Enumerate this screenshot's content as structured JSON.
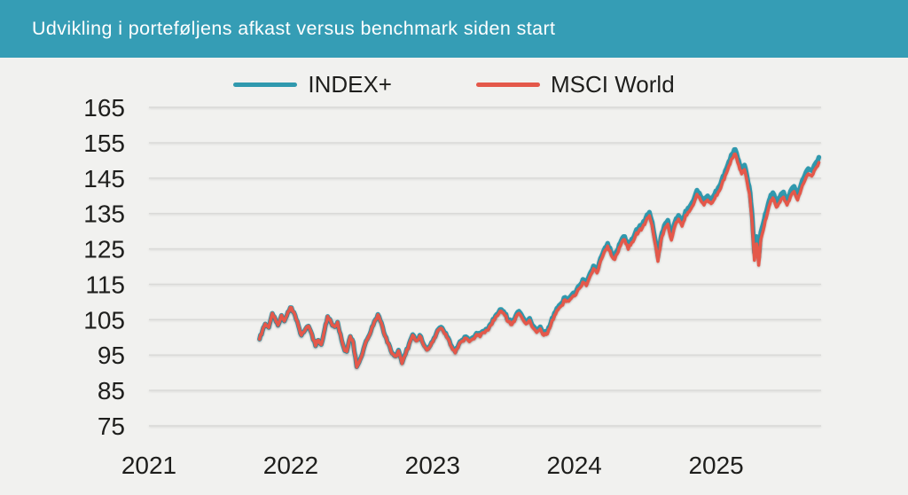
{
  "header": {
    "title": "Udvikling i porteføljens afkast versus benchmark siden start",
    "bg_color": "#359db5",
    "text_color": "#ffffff"
  },
  "chart_data": {
    "type": "line",
    "title": "Udvikling i porteføljens afkast versus benchmark siden start",
    "xlabel": "",
    "ylabel": "",
    "ylim": [
      75,
      165
    ],
    "yticks": [
      165,
      155,
      145,
      135,
      125,
      115,
      105,
      95,
      85,
      75
    ],
    "xticks": [
      2021,
      2022,
      2023,
      2024,
      2025
    ],
    "grid": "horizontal",
    "legend_position": "top",
    "background": "#f1f1ef",
    "grid_color": "#d9d9d7",
    "text_color": "#1e1e1c",
    "x": [
      2021.78,
      2021.8,
      2021.82,
      2021.845,
      2021.87,
      2021.89,
      2021.91,
      2021.935,
      2021.955,
      2021.98,
      2022.005,
      2022.03,
      2022.055,
      2022.075,
      2022.1,
      2022.125,
      2022.15,
      2022.175,
      2022.195,
      2022.215,
      2022.24,
      2022.26,
      2022.285,
      2022.31,
      2022.33,
      2022.35,
      2022.375,
      2022.395,
      2022.42,
      2022.44,
      2022.465,
      2022.49,
      2022.515,
      2022.54,
      2022.565,
      2022.59,
      2022.615,
      2022.64,
      2022.665,
      2022.69,
      2022.715,
      2022.74,
      2022.76,
      2022.785,
      2022.81,
      2022.835,
      2022.86,
      2022.885,
      2022.91,
      2022.935,
      2022.96,
      2022.985,
      2023.01,
      2023.035,
      2023.06,
      2023.085,
      2023.11,
      2023.135,
      2023.16,
      2023.185,
      2023.21,
      2023.235,
      2023.26,
      2023.285,
      2023.31,
      2023.335,
      2023.36,
      2023.385,
      2023.41,
      2023.435,
      2023.46,
      2023.485,
      2023.51,
      2023.535,
      2023.56,
      2023.585,
      2023.61,
      2023.635,
      2023.66,
      2023.685,
      2023.71,
      2023.735,
      2023.76,
      2023.785,
      2023.81,
      2023.835,
      2023.86,
      2023.885,
      2023.91,
      2023.935,
      2023.96,
      2023.985,
      2024.01,
      2024.035,
      2024.06,
      2024.085,
      2024.11,
      2024.135,
      2024.16,
      2024.185,
      2024.21,
      2024.235,
      2024.26,
      2024.285,
      2024.31,
      2024.33,
      2024.355,
      2024.38,
      2024.405,
      2024.43,
      2024.455,
      2024.48,
      2024.505,
      2024.53,
      2024.55,
      2024.57,
      2024.59,
      2024.61,
      2024.635,
      2024.66,
      2024.685,
      2024.71,
      2024.735,
      2024.76,
      2024.785,
      2024.81,
      2024.84,
      2024.865,
      2024.89,
      2024.915,
      2024.94,
      2024.965,
      2024.99,
      2025.015,
      2025.04,
      2025.065,
      2025.09,
      2025.115,
      2025.135,
      2025.16,
      2025.18,
      2025.2,
      2025.22,
      2025.24,
      2025.255,
      2025.27,
      2025.285,
      2025.3,
      2025.315,
      2025.34,
      2025.36,
      2025.38,
      2025.4,
      2025.425,
      2025.45,
      2025.475,
      2025.5,
      2025.525,
      2025.55,
      2025.575,
      2025.6,
      2025.625,
      2025.65,
      2025.675,
      2025.7,
      2025.725
    ],
    "series": [
      {
        "name": "INDEX+",
        "color": "#3099ae",
        "values": [
          99.5,
          101.8,
          103.8,
          102.8,
          106.8,
          105.3,
          103.4,
          106.2,
          104.6,
          107.2,
          108.4,
          106.3,
          103.2,
          100.6,
          102.0,
          103.2,
          100.8,
          97.6,
          99.2,
          98.0,
          102.4,
          105.9,
          104.2,
          103.0,
          104.3,
          101.0,
          97.0,
          96.0,
          100.3,
          98.7,
          91.7,
          93.9,
          96.9,
          99.5,
          101.7,
          104.5,
          106.5,
          104.1,
          100.5,
          98.3,
          95.5,
          94.7,
          96.4,
          92.8,
          95.4,
          98.2,
          100.8,
          99.2,
          100.6,
          98.2,
          96.6,
          97.8,
          99.8,
          102.0,
          102.9,
          101.3,
          99.9,
          97.5,
          95.9,
          98.1,
          99.3,
          100.2,
          99.2,
          100.0,
          101.2,
          100.6,
          101.8,
          102.4,
          103.8,
          105.2,
          106.7,
          107.9,
          106.7,
          104.9,
          104.1,
          105.9,
          107.4,
          105.8,
          104.4,
          105.4,
          103.2,
          102.0,
          103.0,
          101.2,
          101.6,
          104.2,
          106.9,
          108.5,
          109.7,
          111.3,
          110.9,
          112.2,
          112.8,
          114.6,
          116.4,
          115.4,
          118.0,
          120.2,
          119.0,
          122.4,
          124.8,
          126.6,
          124.0,
          122.9,
          125.1,
          127.3,
          128.5,
          125.8,
          127.8,
          129.6,
          131.0,
          132.0,
          133.8,
          135.4,
          132.5,
          127.7,
          122.8,
          128.1,
          131.6,
          133.1,
          128.7,
          132.6,
          134.5,
          132.6,
          135.7,
          136.7,
          138.7,
          141.6,
          140.0,
          138.6,
          140.0,
          139.0,
          140.5,
          142.3,
          144.5,
          147.1,
          149.7,
          151.9,
          153.1,
          149.9,
          147.5,
          148.7,
          145.1,
          140.8,
          134.0,
          123.9,
          128.5,
          122.6,
          129.7,
          133.5,
          136.5,
          139.4,
          140.9,
          138.3,
          139.7,
          141.1,
          138.9,
          141.3,
          142.7,
          140.3,
          143.3,
          145.7,
          147.7,
          147.1,
          149.1,
          150.9
        ]
      },
      {
        "name": "MSCI World",
        "color": "#e4584a",
        "values": [
          99.5,
          101.8,
          103.8,
          102.8,
          106.8,
          105.3,
          103.4,
          106.2,
          104.6,
          107.2,
          108.4,
          106.3,
          103.2,
          100.6,
          102.0,
          103.2,
          100.8,
          97.6,
          99.2,
          98.0,
          102.4,
          105.9,
          104.2,
          103.0,
          104.3,
          101.0,
          97.0,
          96.0,
          100.3,
          98.6,
          91.6,
          93.8,
          96.8,
          99.4,
          101.6,
          104.4,
          106.4,
          104.0,
          100.4,
          98.2,
          95.4,
          94.6,
          96.2,
          92.6,
          95.2,
          98.0,
          100.6,
          99.0,
          100.4,
          98.0,
          96.4,
          97.6,
          99.6,
          101.8,
          102.6,
          101.0,
          99.6,
          97.2,
          95.6,
          97.8,
          99.0,
          99.8,
          98.8,
          99.6,
          100.8,
          100.2,
          101.4,
          102.0,
          103.4,
          104.8,
          106.2,
          107.4,
          106.2,
          104.4,
          103.6,
          105.4,
          106.8,
          105.2,
          103.8,
          104.8,
          102.6,
          101.4,
          102.4,
          100.6,
          101.0,
          103.6,
          106.2,
          107.8,
          109.0,
          110.6,
          110.2,
          111.4,
          112.0,
          113.8,
          115.6,
          114.6,
          117.2,
          119.4,
          118.2,
          121.6,
          124.0,
          125.8,
          123.2,
          122.0,
          124.2,
          126.4,
          127.6,
          124.9,
          126.8,
          128.6,
          130.0,
          131.0,
          132.8,
          134.4,
          131.5,
          126.5,
          121.5,
          127.0,
          130.5,
          132.0,
          127.5,
          131.5,
          133.4,
          131.4,
          134.5,
          135.5,
          137.5,
          140.4,
          138.8,
          137.4,
          138.8,
          137.8,
          139.2,
          141.0,
          143.2,
          145.8,
          148.4,
          150.6,
          151.8,
          148.6,
          146.2,
          147.4,
          143.6,
          139.0,
          132.0,
          121.8,
          126.4,
          120.4,
          127.6,
          131.6,
          134.8,
          137.8,
          139.4,
          136.8,
          138.2,
          139.6,
          137.4,
          139.8,
          141.2,
          138.8,
          141.8,
          144.2,
          146.2,
          145.6,
          147.6,
          149.4
        ]
      }
    ]
  }
}
